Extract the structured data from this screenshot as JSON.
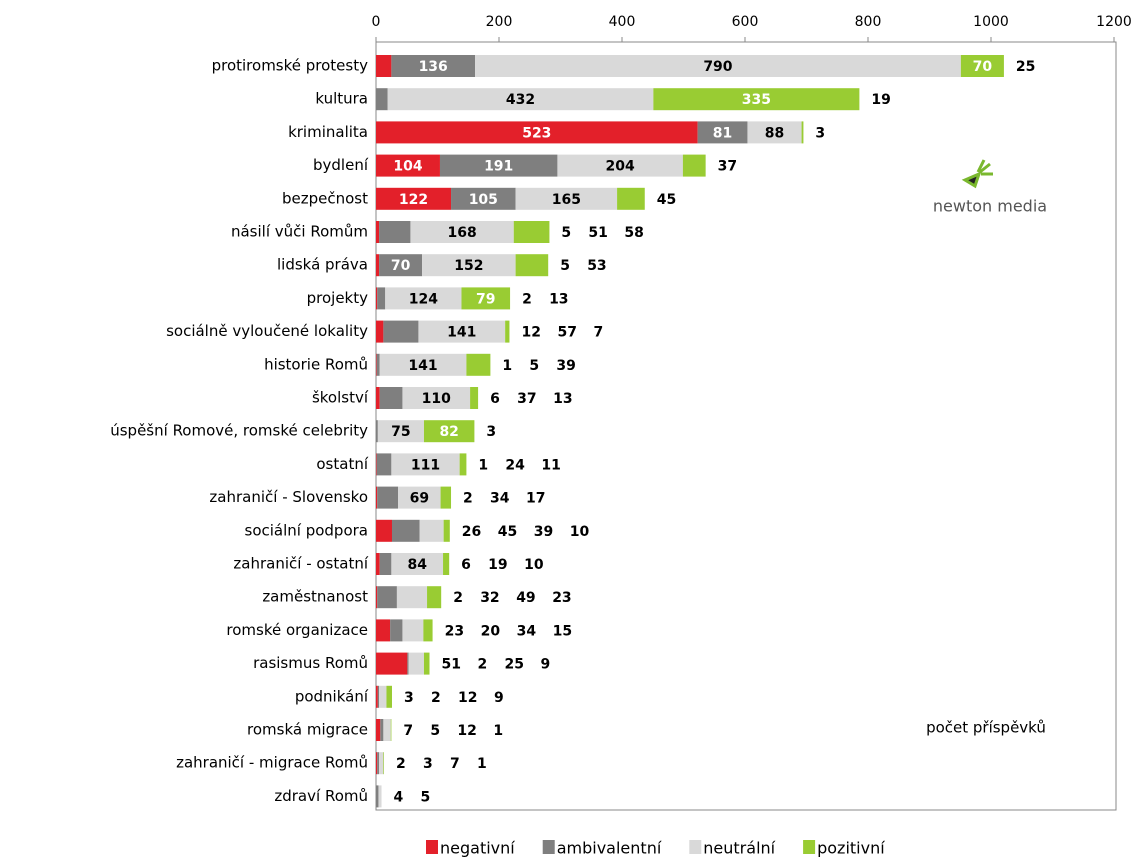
{
  "chart_data": {
    "type": "stacked_bar_horizontal",
    "categories": [
      "protiromské protesty",
      "kultura",
      "kriminalita",
      "bydlení",
      "bezpečnost",
      "násilí vůči Romům",
      "lidská práva",
      "projekty",
      "sociálně vyloučené lokality",
      "historie Romů",
      "školství",
      "úspěšní Romové, romské celebrity",
      "ostatní",
      "zahraničí - Slovensko",
      "sociální podpora",
      "zahraničí - ostatní",
      "zaměstnanost",
      "romské organizace",
      "rasismus Romů",
      "podnikání",
      "romská migrace",
      "zahraničí - migrace Romů",
      "zdraví Romů"
    ],
    "series": [
      {
        "name": "negativní",
        "color": "#e3202a",
        "values": [
          25,
          0,
          523,
          104,
          122,
          5,
          5,
          2,
          12,
          1,
          6,
          0,
          1,
          2,
          26,
          6,
          2,
          23,
          51,
          3,
          7,
          2,
          0
        ]
      },
      {
        "name": "ambivalentní",
        "color": "#7f7f7f",
        "values": [
          136,
          19,
          81,
          191,
          105,
          51,
          70,
          13,
          57,
          5,
          37,
          3,
          24,
          34,
          45,
          19,
          32,
          20,
          2,
          2,
          5,
          3,
          4
        ]
      },
      {
        "name": "neutrální",
        "color": "#d9d9d9",
        "values": [
          790,
          432,
          88,
          204,
          165,
          168,
          152,
          124,
          141,
          141,
          110,
          75,
          111,
          69,
          39,
          84,
          49,
          34,
          25,
          12,
          12,
          7,
          5
        ]
      },
      {
        "name": "pozitivní",
        "color": "#99cc33",
        "values": [
          70,
          335,
          3,
          37,
          45,
          58,
          53,
          79,
          7,
          39,
          13,
          82,
          11,
          17,
          10,
          10,
          23,
          15,
          9,
          9,
          1,
          1,
          0
        ]
      }
    ],
    "xlim": [
      0,
      1200
    ],
    "xticks": [
      0,
      200,
      400,
      600,
      800,
      1000,
      1200
    ],
    "annotation": "počet příspěvků",
    "logo": "newton media",
    "legend": "bottom"
  }
}
